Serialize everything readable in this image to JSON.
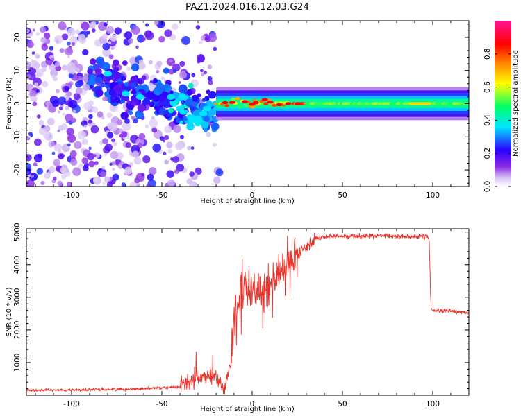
{
  "figure": {
    "title": "PAZ1.2024.016.12.03.G24"
  },
  "chart_data": [
    {
      "type": "heatmap",
      "xlabel": "Height of straight line (km)",
      "ylabel": "Frequency (Hz)",
      "xlim": [
        -125,
        120
      ],
      "ylim": [
        -25,
        25
      ],
      "xticks": [
        -100,
        -50,
        0,
        50,
        100
      ],
      "yticks": [
        -20,
        -10,
        0,
        10,
        20
      ],
      "grid": false,
      "colorbar": {
        "label": "Normalized spectral amplitude",
        "range": [
          0,
          1
        ],
        "ticks": [
          0.0,
          0.2,
          0.4,
          0.6,
          0.8
        ],
        "colormap": [
          "#ffffff",
          "#d9c6f5",
          "#8a2be2",
          "#2a00ff",
          "#00e5ff",
          "#00ff66",
          "#ffff00",
          "#ff7f00",
          "#ff0000",
          "#ff1493"
        ]
      },
      "bands": [
        {
          "x": [
            -125,
            -90
          ],
          "freq_center": 0,
          "freq_spread": 25,
          "amplitude": 0.15,
          "note": "scattered weak"
        },
        {
          "x": [
            -90,
            -55
          ],
          "freq_center": 6,
          "freq_spread": 10,
          "amplitude": 0.25
        },
        {
          "x": [
            -55,
            -20
          ],
          "freq_center": -3,
          "freq_spread": 6,
          "amplitude": 0.35
        },
        {
          "x": [
            -20,
            30
          ],
          "freq_center": 0,
          "freq_spread": 2,
          "amplitude": 0.9
        },
        {
          "x": [
            30,
            120
          ],
          "freq_center": 0,
          "freq_spread": 2,
          "amplitude": 0.55
        }
      ]
    },
    {
      "type": "line",
      "xlabel": "Height of straight line (km)",
      "ylabel": "SNR (10 * v/v)",
      "xlim": [
        -125,
        120
      ],
      "ylim": [
        0,
        5100
      ],
      "xticks": [
        -100,
        -50,
        0,
        50,
        100
      ],
      "yticks": [
        1000,
        2000,
        3000,
        4000,
        5000
      ],
      "grid": false,
      "color": "#e8322a",
      "series": [
        {
          "x": [
            -125,
            -100,
            -75,
            -60,
            -50,
            -40,
            -35,
            -30,
            -25,
            -20,
            -18,
            -15,
            -12,
            -10,
            -8,
            -5,
            -2,
            0,
            5,
            10,
            15,
            20,
            25,
            30,
            35,
            40,
            50,
            60,
            70,
            80,
            90,
            97,
            98,
            99,
            100,
            110,
            120
          ],
          "y": [
            150,
            160,
            180,
            200,
            230,
            260,
            400,
            550,
            600,
            500,
            300,
            200,
            1000,
            2500,
            3000,
            3200,
            3300,
            3100,
            3300,
            3500,
            3700,
            4000,
            4300,
            4600,
            4800,
            4850,
            4870,
            4880,
            4880,
            4870,
            4860,
            4850,
            4800,
            2700,
            2600,
            2580,
            2520
          ]
        }
      ]
    }
  ]
}
